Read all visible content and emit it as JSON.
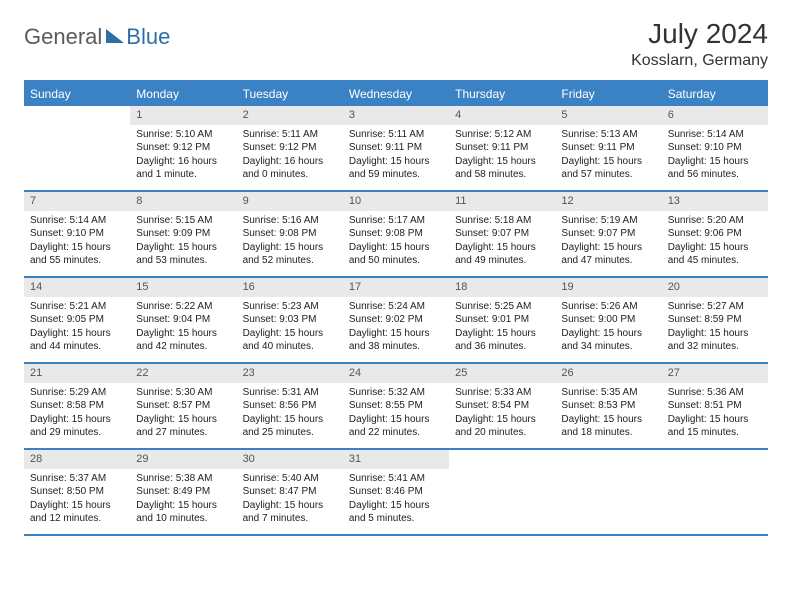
{
  "brand": {
    "part1": "General",
    "part2": "Blue"
  },
  "title": "July 2024",
  "location": "Kosslarn, Germany",
  "colors": {
    "header_bg": "#3b82c4",
    "header_text": "#ffffff",
    "daynum_bg": "#e9e9e9",
    "border": "#3b82c4",
    "logo_gray": "#5b5b5b",
    "logo_blue": "#2f6fa8"
  },
  "dow": [
    "Sunday",
    "Monday",
    "Tuesday",
    "Wednesday",
    "Thursday",
    "Friday",
    "Saturday"
  ],
  "weeks": [
    [
      {
        "n": "",
        "sr": "",
        "ss": "",
        "dl": ""
      },
      {
        "n": "1",
        "sr": "Sunrise: 5:10 AM",
        "ss": "Sunset: 9:12 PM",
        "dl": "Daylight: 16 hours and 1 minute."
      },
      {
        "n": "2",
        "sr": "Sunrise: 5:11 AM",
        "ss": "Sunset: 9:12 PM",
        "dl": "Daylight: 16 hours and 0 minutes."
      },
      {
        "n": "3",
        "sr": "Sunrise: 5:11 AM",
        "ss": "Sunset: 9:11 PM",
        "dl": "Daylight: 15 hours and 59 minutes."
      },
      {
        "n": "4",
        "sr": "Sunrise: 5:12 AM",
        "ss": "Sunset: 9:11 PM",
        "dl": "Daylight: 15 hours and 58 minutes."
      },
      {
        "n": "5",
        "sr": "Sunrise: 5:13 AM",
        "ss": "Sunset: 9:11 PM",
        "dl": "Daylight: 15 hours and 57 minutes."
      },
      {
        "n": "6",
        "sr": "Sunrise: 5:14 AM",
        "ss": "Sunset: 9:10 PM",
        "dl": "Daylight: 15 hours and 56 minutes."
      }
    ],
    [
      {
        "n": "7",
        "sr": "Sunrise: 5:14 AM",
        "ss": "Sunset: 9:10 PM",
        "dl": "Daylight: 15 hours and 55 minutes."
      },
      {
        "n": "8",
        "sr": "Sunrise: 5:15 AM",
        "ss": "Sunset: 9:09 PM",
        "dl": "Daylight: 15 hours and 53 minutes."
      },
      {
        "n": "9",
        "sr": "Sunrise: 5:16 AM",
        "ss": "Sunset: 9:08 PM",
        "dl": "Daylight: 15 hours and 52 minutes."
      },
      {
        "n": "10",
        "sr": "Sunrise: 5:17 AM",
        "ss": "Sunset: 9:08 PM",
        "dl": "Daylight: 15 hours and 50 minutes."
      },
      {
        "n": "11",
        "sr": "Sunrise: 5:18 AM",
        "ss": "Sunset: 9:07 PM",
        "dl": "Daylight: 15 hours and 49 minutes."
      },
      {
        "n": "12",
        "sr": "Sunrise: 5:19 AM",
        "ss": "Sunset: 9:07 PM",
        "dl": "Daylight: 15 hours and 47 minutes."
      },
      {
        "n": "13",
        "sr": "Sunrise: 5:20 AM",
        "ss": "Sunset: 9:06 PM",
        "dl": "Daylight: 15 hours and 45 minutes."
      }
    ],
    [
      {
        "n": "14",
        "sr": "Sunrise: 5:21 AM",
        "ss": "Sunset: 9:05 PM",
        "dl": "Daylight: 15 hours and 44 minutes."
      },
      {
        "n": "15",
        "sr": "Sunrise: 5:22 AM",
        "ss": "Sunset: 9:04 PM",
        "dl": "Daylight: 15 hours and 42 minutes."
      },
      {
        "n": "16",
        "sr": "Sunrise: 5:23 AM",
        "ss": "Sunset: 9:03 PM",
        "dl": "Daylight: 15 hours and 40 minutes."
      },
      {
        "n": "17",
        "sr": "Sunrise: 5:24 AM",
        "ss": "Sunset: 9:02 PM",
        "dl": "Daylight: 15 hours and 38 minutes."
      },
      {
        "n": "18",
        "sr": "Sunrise: 5:25 AM",
        "ss": "Sunset: 9:01 PM",
        "dl": "Daylight: 15 hours and 36 minutes."
      },
      {
        "n": "19",
        "sr": "Sunrise: 5:26 AM",
        "ss": "Sunset: 9:00 PM",
        "dl": "Daylight: 15 hours and 34 minutes."
      },
      {
        "n": "20",
        "sr": "Sunrise: 5:27 AM",
        "ss": "Sunset: 8:59 PM",
        "dl": "Daylight: 15 hours and 32 minutes."
      }
    ],
    [
      {
        "n": "21",
        "sr": "Sunrise: 5:29 AM",
        "ss": "Sunset: 8:58 PM",
        "dl": "Daylight: 15 hours and 29 minutes."
      },
      {
        "n": "22",
        "sr": "Sunrise: 5:30 AM",
        "ss": "Sunset: 8:57 PM",
        "dl": "Daylight: 15 hours and 27 minutes."
      },
      {
        "n": "23",
        "sr": "Sunrise: 5:31 AM",
        "ss": "Sunset: 8:56 PM",
        "dl": "Daylight: 15 hours and 25 minutes."
      },
      {
        "n": "24",
        "sr": "Sunrise: 5:32 AM",
        "ss": "Sunset: 8:55 PM",
        "dl": "Daylight: 15 hours and 22 minutes."
      },
      {
        "n": "25",
        "sr": "Sunrise: 5:33 AM",
        "ss": "Sunset: 8:54 PM",
        "dl": "Daylight: 15 hours and 20 minutes."
      },
      {
        "n": "26",
        "sr": "Sunrise: 5:35 AM",
        "ss": "Sunset: 8:53 PM",
        "dl": "Daylight: 15 hours and 18 minutes."
      },
      {
        "n": "27",
        "sr": "Sunrise: 5:36 AM",
        "ss": "Sunset: 8:51 PM",
        "dl": "Daylight: 15 hours and 15 minutes."
      }
    ],
    [
      {
        "n": "28",
        "sr": "Sunrise: 5:37 AM",
        "ss": "Sunset: 8:50 PM",
        "dl": "Daylight: 15 hours and 12 minutes."
      },
      {
        "n": "29",
        "sr": "Sunrise: 5:38 AM",
        "ss": "Sunset: 8:49 PM",
        "dl": "Daylight: 15 hours and 10 minutes."
      },
      {
        "n": "30",
        "sr": "Sunrise: 5:40 AM",
        "ss": "Sunset: 8:47 PM",
        "dl": "Daylight: 15 hours and 7 minutes."
      },
      {
        "n": "31",
        "sr": "Sunrise: 5:41 AM",
        "ss": "Sunset: 8:46 PM",
        "dl": "Daylight: 15 hours and 5 minutes."
      },
      {
        "n": "",
        "sr": "",
        "ss": "",
        "dl": ""
      },
      {
        "n": "",
        "sr": "",
        "ss": "",
        "dl": ""
      },
      {
        "n": "",
        "sr": "",
        "ss": "",
        "dl": ""
      }
    ]
  ]
}
